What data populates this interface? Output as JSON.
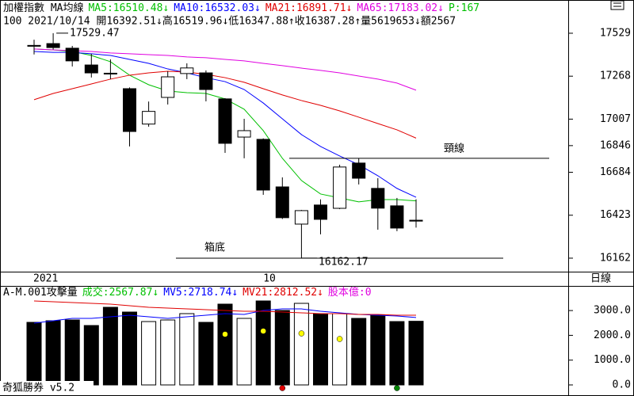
{
  "header": {
    "segments": [
      {
        "text": "加權指數 MA均線",
        "color": "#000000"
      },
      {
        "text": "MA5:16510.48↓",
        "color": "#00c000"
      },
      {
        "text": "MA10:16532.03↓",
        "color": "#0000ff"
      },
      {
        "text": "MA21:16891.71↓",
        "color": "#e00000"
      },
      {
        "text": "MA65:17183.02↓",
        "color": "#e000e0"
      },
      {
        "text": "P:167",
        "color": "#00c000"
      }
    ]
  },
  "info_line": "100 2021/10/14 開16392.51↓高16519.96↓低16347.88↑收16387.28↑量5619653↓額2567",
  "period_label": "日線",
  "footer": "奇狐勝券 v5.2",
  "chart_data": [
    {
      "type": "candlestick",
      "categories": [
        "2021",
        null,
        null,
        null,
        null,
        null,
        null,
        null,
        null,
        null,
        null,
        null,
        "10",
        null,
        null,
        null,
        null,
        null,
        null,
        null,
        null
      ],
      "open": [
        17455,
        17466,
        17438,
        17336,
        17286,
        17192,
        16977,
        17139,
        17284,
        17288,
        17130,
        16898,
        16884,
        16595,
        16369,
        16485,
        16465,
        16740,
        16586,
        16480,
        16392.51
      ],
      "high": [
        17490,
        17529.47,
        17452,
        17404,
        17370,
        17200,
        17114,
        17298,
        17346,
        17303,
        17135,
        17009,
        16890,
        16653,
        16455,
        16519,
        16730,
        16769,
        16648,
        16528,
        16519.96
      ],
      "low": [
        17400,
        17430,
        17327,
        17260,
        17250,
        16841,
        16961,
        17096,
        17250,
        17115,
        16802,
        16769,
        16547,
        16400,
        16162.17,
        16307,
        16460,
        16610,
        16335,
        16326,
        16347.88
      ],
      "close": [
        17450,
        17442,
        17361,
        17288,
        17283,
        16932,
        17054,
        17264,
        17318,
        17187,
        16860,
        16937,
        16576,
        16408,
        16451,
        16398,
        16716,
        16648,
        16466,
        16345,
        16387.28
      ],
      "up_color": "#ffffff",
      "down_color": "#000000",
      "series": [
        {
          "color": "#00c000",
          "values": [
            17433,
            17428,
            17418,
            17394,
            17356,
            17274,
            17216,
            17178,
            17168,
            17163,
            17130,
            17067,
            16937,
            16769,
            16634,
            16552,
            16528,
            16504,
            16518,
            16518,
            16510.48
          ]
        },
        {
          "color": "#0000ff",
          "values": [
            17418,
            17413,
            17413,
            17404,
            17394,
            17370,
            17346,
            17312,
            17288,
            17259,
            17235,
            17187,
            17105,
            17009,
            16913,
            16841,
            16783,
            16730,
            16663,
            16586,
            16532.03
          ]
        },
        {
          "color": "#e00000",
          "values": [
            17125,
            17163,
            17192,
            17221,
            17250,
            17274,
            17288,
            17298,
            17293,
            17279,
            17259,
            17231,
            17192,
            17154,
            17120,
            17091,
            17057,
            17019,
            16980,
            16942,
            16891.71
          ]
        },
        {
          "color": "#e000e0",
          "values": [
            17433,
            17428,
            17423,
            17418,
            17409,
            17404,
            17399,
            17394,
            17385,
            17380,
            17370,
            17361,
            17346,
            17332,
            17317,
            17303,
            17288,
            17269,
            17250,
            17226,
            17183.02
          ]
        }
      ],
      "ylim": [
        16080,
        17731
      ],
      "yticks": [
        17529,
        17268,
        17007,
        16846,
        16684,
        16423,
        16162
      ],
      "annotations": [
        {
          "text": "17529.47",
          "value": 17529.47
        },
        {
          "text": "16162.17",
          "value": 16162.17
        },
        {
          "text": "頸線",
          "value": 16769
        },
        {
          "text": "箱底",
          "value": 16162
        }
      ]
    },
    {
      "type": "bar",
      "header": [
        {
          "text": "A-M.001攻擊量",
          "color": "#000000"
        },
        {
          "text": "成交:2567.87↓",
          "color": "#00c000"
        },
        {
          "text": "MV5:2718.74↓",
          "color": "#0000ff"
        },
        {
          "text": "MV21:2812.52↓",
          "color": "#e00000"
        },
        {
          "text": "股本億:0",
          "color": "#e000e0"
        }
      ],
      "values": [
        2524,
        2588,
        2620,
        2396,
        3131,
        2939,
        2556,
        2620,
        2876,
        2524,
        3259,
        2684,
        3387,
        3003,
        3291,
        2876,
        2876,
        2684,
        2812,
        2556,
        2567.87
      ],
      "series": [
        {
          "color": "#0000ff",
          "values": [
            2492,
            2588,
            2684,
            2684,
            2748,
            2812,
            2748,
            2684,
            2748,
            2812,
            2876,
            2844,
            3003,
            3067,
            3067,
            2971,
            2907,
            2844,
            2812,
            2780,
            2718.74
          ]
        },
        {
          "color": "#e00000",
          "values": [
            3387,
            3355,
            3323,
            3291,
            3259,
            3195,
            3131,
            3099,
            3067,
            3035,
            3003,
            2971,
            2971,
            2939,
            2907,
            2876,
            2876,
            2844,
            2844,
            2812,
            2812.52
          ]
        }
      ],
      "dots": [
        null,
        null,
        null,
        null,
        null,
        null,
        null,
        null,
        null,
        null,
        2045,
        null,
        2173,
        null,
        2077,
        null,
        1853,
        null,
        null,
        null,
        null
      ],
      "dot_color": "#ffff00",
      "signals": [
        null,
        null,
        null,
        null,
        null,
        null,
        null,
        null,
        null,
        null,
        null,
        null,
        null,
        "#e00000",
        null,
        null,
        null,
        null,
        null,
        "#008000",
        null
      ],
      "ylim": [
        -383,
        3962
      ],
      "yticks": [
        {
          "value": 3000,
          "label": "3000.0"
        },
        {
          "value": 2000,
          "label": "2000.0"
        },
        {
          "value": 1000,
          "label": "1000.0"
        },
        {
          "value": 0,
          "label": "0.0"
        }
      ]
    }
  ]
}
